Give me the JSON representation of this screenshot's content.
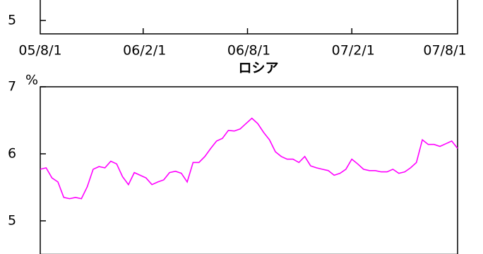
{
  "chart_data": [
    {
      "type": "line",
      "categories": [
        "05/8/1",
        "06/2/1",
        "06/8/1",
        "07/2/1",
        "07/8/1"
      ],
      "ylim": [
        4.8,
        7
      ],
      "yticks": [
        5
      ]
    },
    {
      "type": "line",
      "title": "ロシア",
      "y_unit": "%",
      "ylim": [
        4.5,
        7
      ],
      "yticks": [
        5,
        6,
        7
      ],
      "series": [
        {
          "color": "#ff00ff",
          "values": [
            5.77,
            5.79,
            5.64,
            5.58,
            5.35,
            5.33,
            5.35,
            5.33,
            5.51,
            5.77,
            5.81,
            5.79,
            5.89,
            5.85,
            5.66,
            5.54,
            5.72,
            5.68,
            5.64,
            5.54,
            5.58,
            5.61,
            5.72,
            5.74,
            5.71,
            5.58,
            5.87,
            5.87,
            5.96,
            6.08,
            6.19,
            6.23,
            6.35,
            6.34,
            6.37,
            6.45,
            6.53,
            6.45,
            6.32,
            6.21,
            6.03,
            5.96,
            5.92,
            5.92,
            5.87,
            5.96,
            5.82,
            5.79,
            5.77,
            5.75,
            5.68,
            5.71,
            5.77,
            5.92,
            5.85,
            5.77,
            5.75,
            5.75,
            5.73,
            5.73,
            5.77,
            5.71,
            5.73,
            5.79,
            5.87,
            6.21,
            6.14,
            6.14,
            6.11,
            6.15,
            6.19,
            6.08
          ]
        }
      ]
    }
  ]
}
